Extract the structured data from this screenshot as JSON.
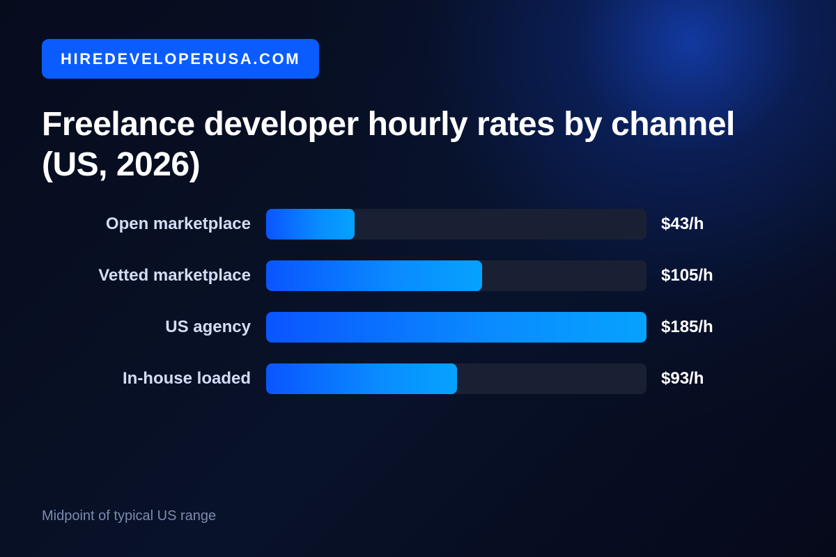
{
  "brand": {
    "label": "HIREDEVELOPERUSA.COM",
    "color": "#0a5cff"
  },
  "footnote": "Midpoint of typical US range",
  "chart_data": {
    "type": "bar",
    "orientation": "horizontal",
    "title": "Freelance developer hourly rates by channel (US, 2026)",
    "categories": [
      "Open marketplace",
      "Vetted marketplace",
      "US agency",
      "In-house loaded"
    ],
    "values": [
      43,
      105,
      185,
      93
    ],
    "value_labels": [
      "$43/h",
      "$105/h",
      "$185/h",
      "$93/h"
    ],
    "unit": "$/h",
    "xlim": [
      0,
      185
    ],
    "xlabel": "",
    "ylabel": "",
    "grid": false,
    "legend": "none",
    "bar_color_start": "#0a55ff",
    "bar_color_end": "#06a2ff",
    "track_color": "#1a2033"
  }
}
